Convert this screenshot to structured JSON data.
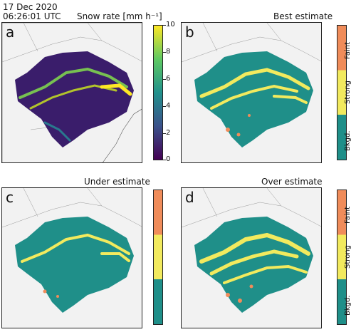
{
  "header": {
    "date": "17 Dec 2020",
    "time": "06:26:01 UTC",
    "variable": "Snow rate [mm h⁻¹]"
  },
  "panels": [
    {
      "letter": "a",
      "title": "",
      "type": "continuous"
    },
    {
      "letter": "b",
      "title": "Best estimate",
      "type": "category"
    },
    {
      "letter": "c",
      "title": "Under estimate",
      "type": "category"
    },
    {
      "letter": "d",
      "title": "Over estimate",
      "type": "category"
    }
  ],
  "colorbar_continuous": {
    "ticks": [
      "10",
      "8",
      "6",
      "4",
      "2",
      "0"
    ],
    "range": [
      0,
      10
    ],
    "colors": [
      "#fde725",
      "#5ec962",
      "#21918c",
      "#3b528b",
      "#440154"
    ]
  },
  "colorbar_category": {
    "labels": [
      "Faint",
      "Strong",
      "Bkgd."
    ],
    "colors": [
      "#f08c5a",
      "#f2ea5e",
      "#1f8f89"
    ]
  }
}
